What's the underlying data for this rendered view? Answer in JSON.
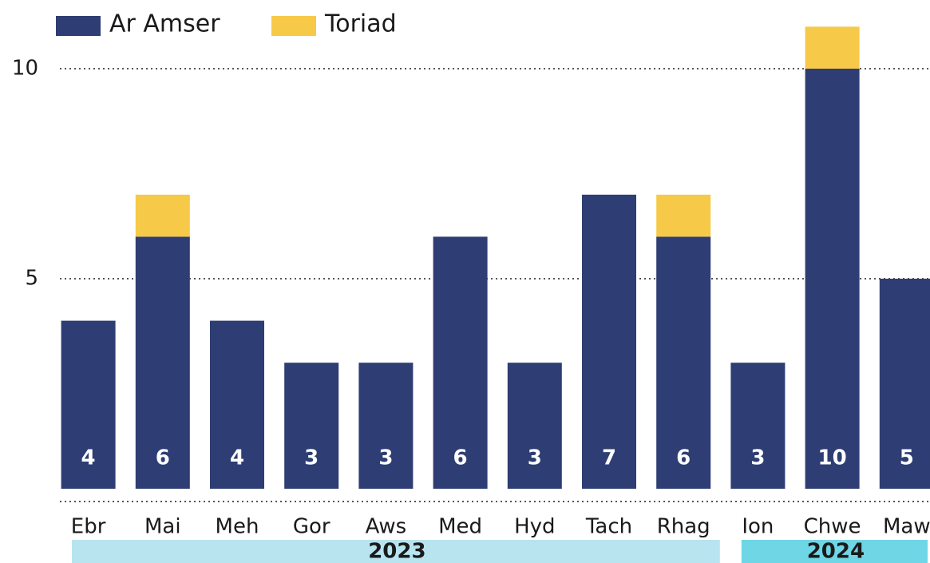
{
  "chart_data": {
    "type": "stacked_bar",
    "categories": [
      "Ebr",
      "Mai",
      "Meh",
      "Gor",
      "Aws",
      "Med",
      "Hyd",
      "Tach",
      "Rhag",
      "Ion",
      "Chwe",
      "Maw"
    ],
    "years": [
      "2023",
      "2023",
      "2023",
      "2023",
      "2023",
      "2023",
      "2023",
      "2023",
      "2023",
      "2024",
      "2024",
      "2024"
    ],
    "series": [
      {
        "name": "Ar Amser",
        "color": "#2e3d73",
        "values": [
          4,
          6,
          4,
          3,
          3,
          6,
          3,
          7,
          6,
          3,
          10,
          5
        ],
        "show_value_labels": true
      },
      {
        "name": "Toriad",
        "color": "#f7c948",
        "values": [
          0,
          1,
          0,
          0,
          0,
          0,
          0,
          0,
          1,
          0,
          1,
          0
        ]
      }
    ],
    "year_colors": {
      "2023": "#b8e4f0",
      "2024": "#6fd6e6"
    },
    "ylim": [
      0,
      12
    ],
    "yticks": [
      5,
      10
    ],
    "grid": true,
    "legend": "top-left"
  }
}
